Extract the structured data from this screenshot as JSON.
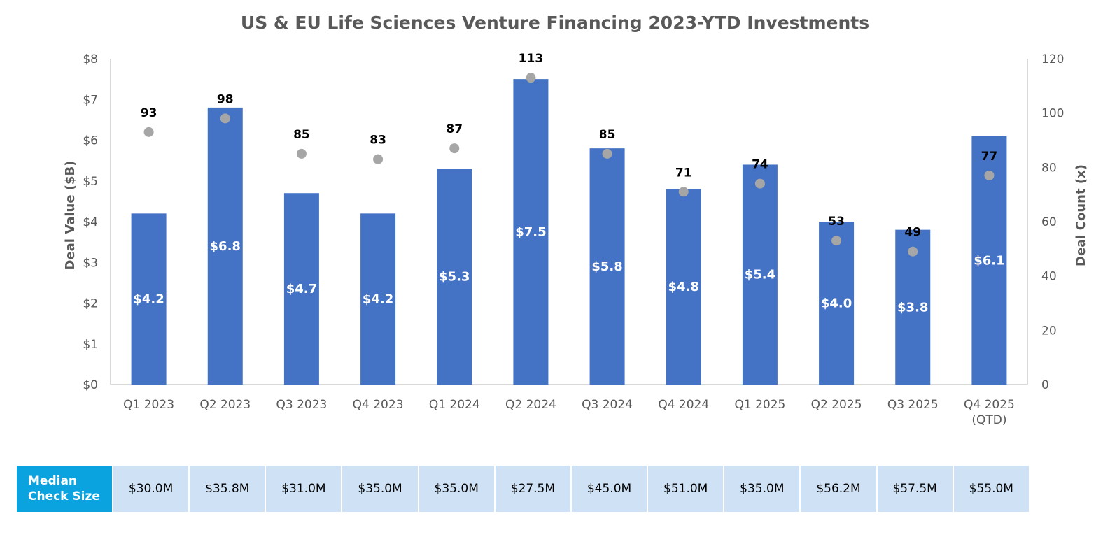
{
  "chart_data": {
    "type": "bar",
    "title": "US & EU Life Sciences Venture Financing 2023-YTD Investments",
    "categories": [
      "Q1 2023",
      "Q2 2023",
      "Q3 2023",
      "Q4 2023",
      "Q1 2024",
      "Q2 2024",
      "Q3 2024",
      "Q4 2024",
      "Q1 2025",
      "Q2 2025",
      "Q3 2025",
      "Q4 2025\n(QTD)"
    ],
    "series": [
      {
        "name": "",
        "kind": "bar",
        "axis": "left",
        "values": [
          4.2,
          6.8,
          4.7,
          4.2,
          5.3,
          7.5,
          5.8,
          4.8,
          5.4,
          4.0,
          3.8,
          6.1
        ],
        "labels": [
          "$4.2",
          "$6.8",
          "$4.7",
          "$4.2",
          "$5.3",
          "$7.5",
          "$5.8",
          "$4.8",
          "$5.4",
          "$4.0",
          "$3.8",
          "$6.1"
        ],
        "color": "#4472c4"
      },
      {
        "name": "",
        "kind": "scatter",
        "axis": "right",
        "values": [
          93,
          98,
          85,
          83,
          87,
          113,
          85,
          71,
          74,
          53,
          49,
          77
        ],
        "labels": [
          "93",
          "98",
          "85",
          "83",
          "87",
          "113",
          "85",
          "71",
          "74",
          "53",
          "49",
          "77"
        ],
        "color": "#a6a6a6"
      }
    ],
    "ylabel": "Deal Value ($B)",
    "ylabel_right": "Deal Count (x)",
    "ylim": [
      0,
      8
    ],
    "ylim_right": [
      0,
      120
    ],
    "yticks": [
      "$0",
      "$1",
      "$2",
      "$3",
      "$4",
      "$5",
      "$6",
      "$7",
      "$8"
    ],
    "yticks_right": [
      "0",
      "20",
      "40",
      "60",
      "80",
      "100",
      "120"
    ],
    "grid": false,
    "legend": "none"
  },
  "median_table": {
    "header": "Median Check Size",
    "values": [
      "$30.0M",
      "$35.8M",
      "$31.0M",
      "$35.0M",
      "$35.0M",
      "$27.5M",
      "$45.0M",
      "$51.0M",
      "$35.0M",
      "$56.2M",
      "$57.5M",
      "$55.0M"
    ]
  },
  "colors": {
    "bar": "#4472c4",
    "marker": "#a6a6a6",
    "table_header": "#0aa3e0",
    "table_cell": "#cfe2f5"
  }
}
